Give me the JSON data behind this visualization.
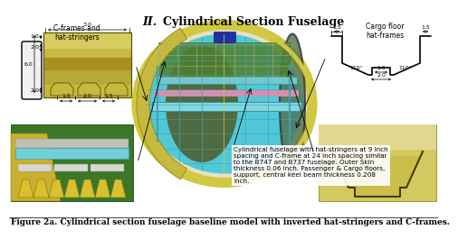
{
  "title_roman": "II.",
  "title_text": "Cylindrical Section Fuselage",
  "title_fontsize": 9,
  "caption": "Figure 2a. Cylindrical section fuselage baseline model with inverted hat-stringers and C-frames.",
  "caption_fontsize": 6.5,
  "left_label": "C-frames and\nhat-stringers",
  "right_label": "Cargo floor\nhat-frames",
  "annotation_text": "Cylindrical fuselage with hat-stringers at 9 inch\nspacing and C-frame at 24 inch spacing similar\nto the B747 and B737 fuselage. Outer Skin\nthickness 0.06 inch. Passenger & Cargo floors,\nsupport, central keel beam thickness 0.208\ninch.",
  "annotation_fontsize": 5.2,
  "bg_color": "#ffffff",
  "skin_yellow1": "#c8b840",
  "skin_yellow2": "#b0a030",
  "skin_yellow3": "#d4c860",
  "skin_dark": "#808000",
  "fuselage_cyan": "#50c8d8",
  "fuselage_cyan2": "#40b0c0",
  "fuselage_yellow_rim": "#d0c840",
  "fuselage_green": "#70a830",
  "floor_cyan": "#88d0d8",
  "floor_pink": "#d898b8",
  "keel_blue": "#4050c0",
  "cargo_grid": "#c8c8b0",
  "hat_yellow": "#d8c030",
  "hat_green_bg": "#388028",
  "hat_yellow_bg": "#c8b030",
  "cargo_right_bg": "#c8b840",
  "dim_color": "#000000"
}
